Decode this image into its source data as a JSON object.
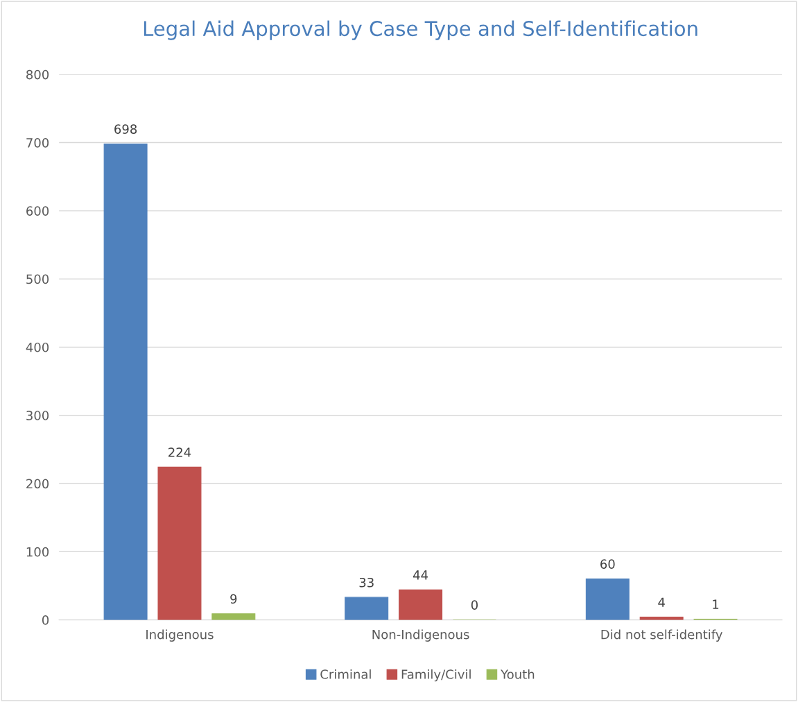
{
  "chart_data": {
    "type": "bar",
    "title": "Legal Aid Approval by Case Type and Self-Identification",
    "categories": [
      "Indigenous",
      "Non-Indigenous",
      "Did not self-identify"
    ],
    "series": [
      {
        "name": "Criminal",
        "color": "#4f81bd",
        "values": [
          698,
          33,
          60
        ]
      },
      {
        "name": "Family/Civil",
        "color": "#c0504d",
        "values": [
          224,
          44,
          4
        ]
      },
      {
        "name": "Youth",
        "color": "#9bbb59",
        "values": [
          9,
          0,
          1
        ]
      }
    ],
    "ylim": [
      0,
      800
    ],
    "yticks": [
      0,
      100,
      200,
      300,
      400,
      500,
      600,
      700,
      800
    ],
    "grid": "y",
    "legend": "bottom",
    "data_labels": true
  }
}
